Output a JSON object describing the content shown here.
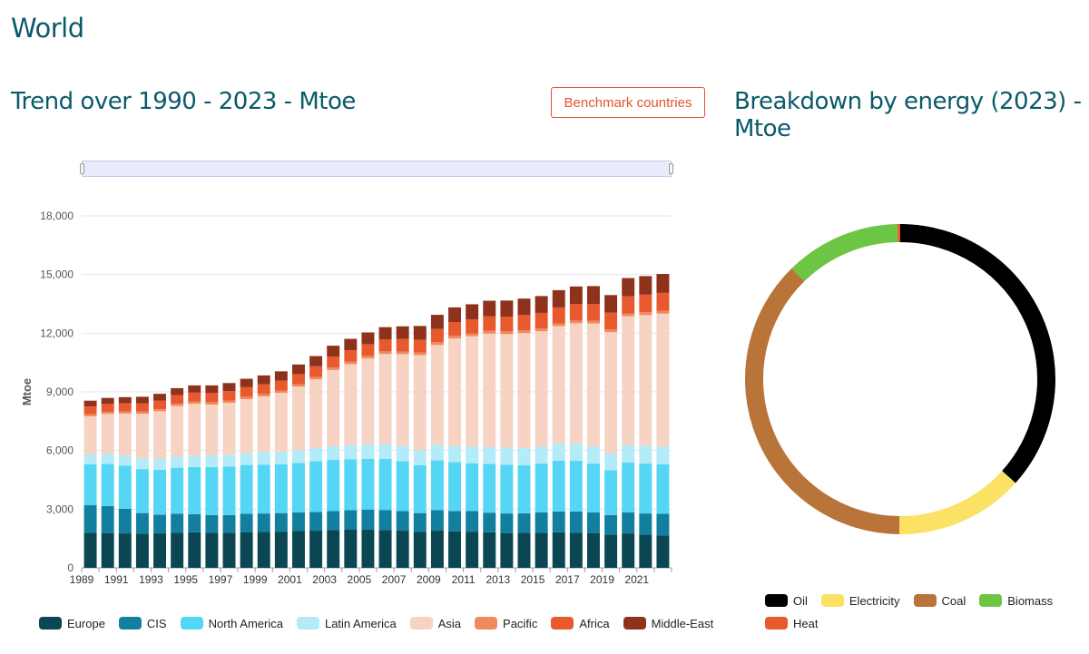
{
  "page": {
    "title": "World",
    "trend_title": "Trend over 1990 - 2023 - Mtoe",
    "breakdown_title": "Breakdown by energy (2023) - Mtoe",
    "benchmark_button": "Benchmark countries"
  },
  "chart_data": [
    {
      "type": "bar",
      "stacked": true,
      "ylabel": "Mtoe",
      "ylim": [
        0,
        18000
      ],
      "yticks": [
        0,
        3000,
        6000,
        9000,
        12000,
        15000,
        18000
      ],
      "ytick_labels": [
        "0",
        "3,000",
        "6,000",
        "9,000",
        "12,000",
        "15,000",
        "18,000"
      ],
      "xtick_labels": [
        "1989",
        "1991",
        "1993",
        "1995",
        "1997",
        "1999",
        "2001",
        "2003",
        "2005",
        "2007",
        "2009",
        "2011",
        "2013",
        "2015",
        "2017",
        "2019",
        "2021"
      ],
      "grid": "horizontal",
      "legend": "bottom",
      "categories": [
        "1990",
        "1991",
        "1992",
        "1993",
        "1994",
        "1995",
        "1996",
        "1997",
        "1998",
        "1999",
        "2000",
        "2001",
        "2002",
        "2003",
        "2004",
        "2005",
        "2006",
        "2007",
        "2008",
        "2009",
        "2010",
        "2011",
        "2012",
        "2013",
        "2014",
        "2015",
        "2016",
        "2017",
        "2018",
        "2019",
        "2020",
        "2021",
        "2022",
        "2023"
      ],
      "series": [
        {
          "name": "Europe",
          "color": "#0a4753",
          "values": [
            1800,
            1780,
            1760,
            1750,
            1760,
            1790,
            1820,
            1800,
            1800,
            1810,
            1830,
            1850,
            1880,
            1900,
            1930,
            1950,
            1950,
            1930,
            1900,
            1850,
            1900,
            1860,
            1850,
            1820,
            1780,
            1790,
            1800,
            1820,
            1800,
            1780,
            1700,
            1760,
            1700,
            1650
          ]
        },
        {
          "name": "CIS",
          "color": "#137f9f",
          "values": [
            1400,
            1380,
            1260,
            1050,
            960,
            980,
            920,
            900,
            900,
            950,
            950,
            950,
            960,
            960,
            970,
            1000,
            1020,
            1030,
            1000,
            950,
            1050,
            1050,
            1050,
            1000,
            1000,
            1000,
            1030,
            1060,
            1080,
            1050,
            1000,
            1080,
            1080,
            1110
          ]
        },
        {
          "name": "North America",
          "color": "#56d6f5",
          "values": [
            2100,
            2150,
            2200,
            2250,
            2300,
            2350,
            2420,
            2450,
            2480,
            2500,
            2500,
            2500,
            2520,
            2600,
            2620,
            2600,
            2600,
            2620,
            2550,
            2450,
            2550,
            2500,
            2450,
            2500,
            2500,
            2450,
            2500,
            2600,
            2600,
            2500,
            2300,
            2550,
            2550,
            2530
          ]
        },
        {
          "name": "Latin America",
          "color": "#b3ecf8",
          "values": [
            500,
            510,
            520,
            530,
            540,
            560,
            580,
            600,
            610,
            620,
            640,
            650,
            660,
            680,
            700,
            720,
            740,
            760,
            780,
            780,
            800,
            820,
            840,
            860,
            870,
            870,
            870,
            880,
            880,
            870,
            850,
            880,
            900,
            910
          ]
        },
        {
          "name": "Asia",
          "color": "#f7d3c4",
          "values": [
            1950,
            2050,
            2150,
            2300,
            2450,
            2600,
            2650,
            2600,
            2650,
            2750,
            2850,
            3000,
            3250,
            3500,
            3900,
            4150,
            4400,
            4600,
            4700,
            4850,
            5100,
            5500,
            5650,
            5800,
            5800,
            5900,
            5900,
            6000,
            6150,
            6300,
            6200,
            6600,
            6700,
            6800
          ]
        },
        {
          "name": "Pacific",
          "color": "#f08a5d",
          "values": [
            100,
            100,
            100,
            110,
            110,
            110,
            110,
            120,
            120,
            120,
            120,
            120,
            120,
            130,
            130,
            130,
            130,
            130,
            130,
            130,
            140,
            140,
            140,
            140,
            140,
            140,
            140,
            140,
            140,
            140,
            140,
            140,
            140,
            140
          ]
        },
        {
          "name": "Africa",
          "color": "#e85a2e",
          "values": [
            400,
            410,
            420,
            430,
            440,
            450,
            460,
            470,
            480,
            490,
            500,
            510,
            520,
            540,
            560,
            580,
            600,
            620,
            640,
            660,
            680,
            700,
            720,
            740,
            760,
            780,
            800,
            820,
            840,
            860,
            860,
            880,
            900,
            920
          ]
        },
        {
          "name": "Middle-East",
          "color": "#8e321c",
          "values": [
            300,
            310,
            320,
            330,
            340,
            350,
            370,
            390,
            410,
            430,
            450,
            470,
            490,
            520,
            550,
            580,
            600,
            620,
            650,
            700,
            720,
            750,
            780,
            800,
            820,
            840,
            860,
            880,
            900,
            910,
            900,
            930,
            950,
            970
          ]
        }
      ]
    },
    {
      "type": "pie",
      "donut": true,
      "legend": "bottom",
      "categories": [
        "Oil",
        "Electricity",
        "Coal",
        "Biomass",
        "Heat"
      ],
      "values": [
        4100,
        1500,
        4200,
        1350,
        30
      ],
      "colors": [
        "#000000",
        "#fbe164",
        "#b87439",
        "#6cc644",
        "#e85a2e"
      ]
    }
  ]
}
